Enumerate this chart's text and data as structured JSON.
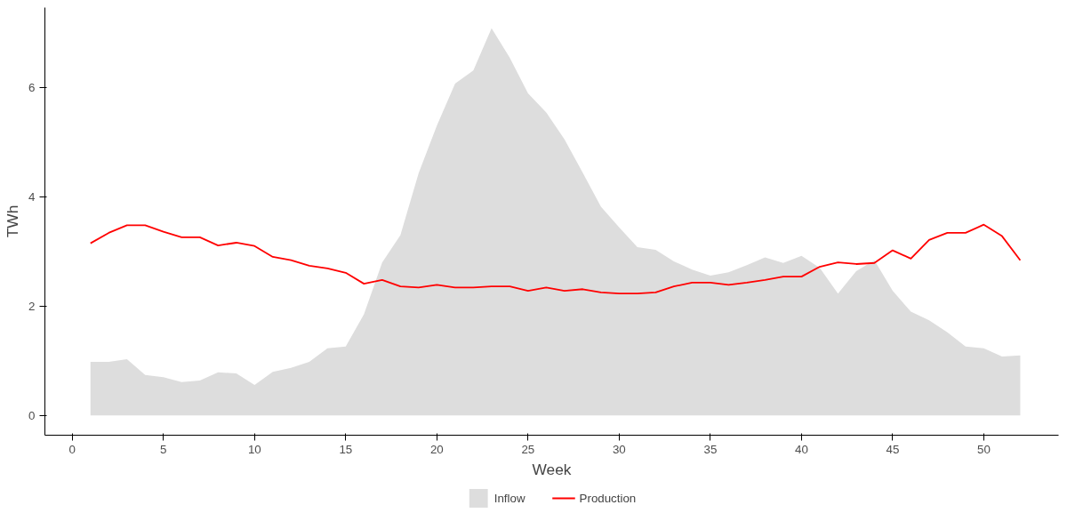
{
  "chart_data": {
    "type": "line",
    "xlabel": "Week",
    "ylabel": "TWh",
    "x": [
      1,
      2,
      3,
      4,
      5,
      6,
      7,
      8,
      9,
      10,
      11,
      12,
      13,
      14,
      15,
      16,
      17,
      18,
      19,
      20,
      21,
      22,
      23,
      24,
      25,
      26,
      27,
      28,
      29,
      30,
      31,
      32,
      33,
      34,
      35,
      36,
      37,
      38,
      39,
      40,
      41,
      42,
      43,
      44,
      45,
      46,
      47,
      48,
      49,
      50,
      51,
      52
    ],
    "series": [
      {
        "name": "Inflow",
        "type": "area",
        "color": "#dddddd",
        "values": [
          0.98,
          0.98,
          1.03,
          0.74,
          0.7,
          0.61,
          0.64,
          0.79,
          0.77,
          0.56,
          0.8,
          0.87,
          0.98,
          1.23,
          1.26,
          1.85,
          2.8,
          3.3,
          4.43,
          5.3,
          6.07,
          6.31,
          7.08,
          6.54,
          5.89,
          5.54,
          5.05,
          4.44,
          3.82,
          3.44,
          3.08,
          3.03,
          2.82,
          2.67,
          2.56,
          2.62,
          2.75,
          2.89,
          2.79,
          2.92,
          2.7,
          2.23,
          2.64,
          2.84,
          2.28,
          1.9,
          1.74,
          1.52,
          1.26,
          1.23,
          1.08,
          1.1
        ]
      },
      {
        "name": "Production",
        "color": "#ff0000",
        "values": [
          3.15,
          3.34,
          3.48,
          3.48,
          3.36,
          3.26,
          3.26,
          3.11,
          3.16,
          3.1,
          2.9,
          2.84,
          2.74,
          2.69,
          2.61,
          2.41,
          2.48,
          2.36,
          2.34,
          2.39,
          2.34,
          2.34,
          2.36,
          2.36,
          2.28,
          2.34,
          2.28,
          2.31,
          2.25,
          2.23,
          2.23,
          2.25,
          2.36,
          2.43,
          2.43,
          2.39,
          2.43,
          2.48,
          2.54,
          2.54,
          2.72,
          2.8,
          2.77,
          2.79,
          3.02,
          2.87,
          3.21,
          3.34,
          3.34,
          3.49,
          3.28,
          2.84
        ]
      }
    ],
    "xlim": [
      -1.5,
      54.1
    ],
    "ylim": [
      -0.36,
      7.46
    ],
    "xticks": [
      0,
      5,
      10,
      15,
      20,
      25,
      30,
      35,
      40,
      45,
      50
    ],
    "yticks": [
      0,
      2,
      4,
      6
    ],
    "grid": false,
    "legend": "bottom",
    "line_style": "solid",
    "marker": "none"
  }
}
